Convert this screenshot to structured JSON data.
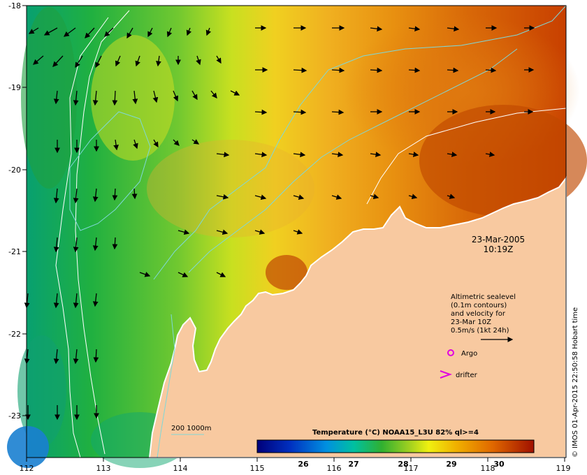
{
  "map": {
    "lon_ticks": [
      "112",
      "113",
      "114",
      "115",
      "116",
      "117",
      "118",
      "119"
    ],
    "lat_ticks": [
      "-18",
      "-19",
      "-20",
      "-21",
      "-22",
      "-23"
    ],
    "timestamp_date": "23-Mar-2005",
    "timestamp_time": "10:19Z",
    "legend_lines": [
      "Altimetric sealevel",
      "(0.1m contours)",
      "and velocity for",
      "23-Mar 10Z",
      "0.5m/s (1kt 24h)"
    ],
    "argo_label": "Argo",
    "drifter_label": "drifter",
    "depth_label": "200  1000m",
    "colorbar_title": "Temperature (°C) NOAA15_L3U 82% ql>=4",
    "colorbar_ticks": [
      "26",
      "27",
      "28",
      "29",
      "30"
    ],
    "credit": "© IMOS 01-Apr-2015 22:50:58 Hobart time",
    "colors": {
      "land": "#f8c9a0",
      "contour": "#7fd8d8",
      "isobath": "#ffffff",
      "argo": "#e000e0",
      "drifter": "#e000e0"
    }
  }
}
